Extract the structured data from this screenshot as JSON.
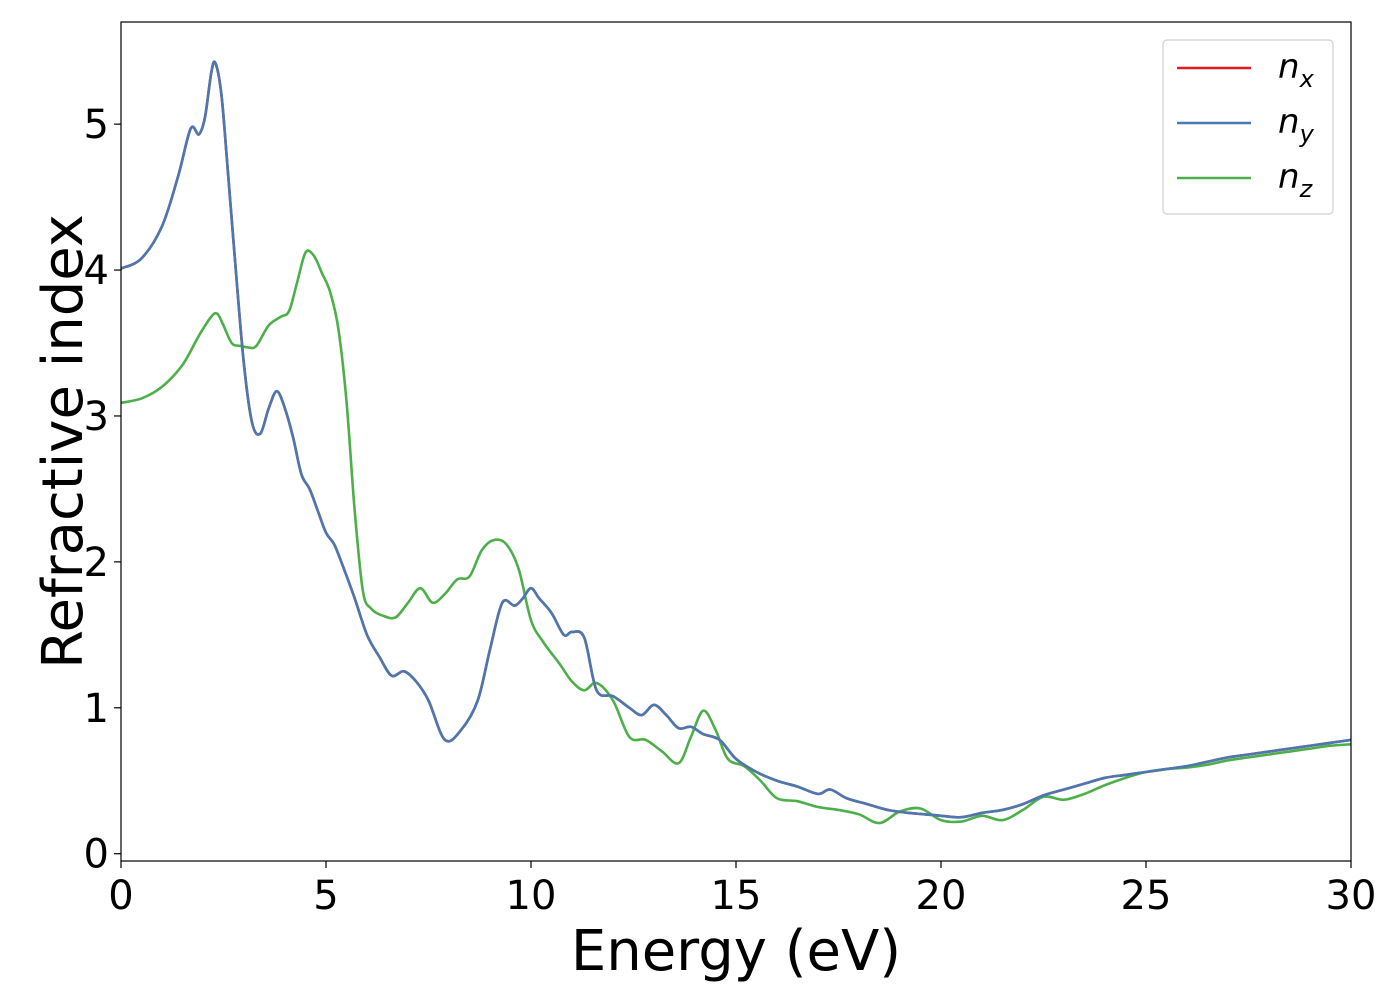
{
  "chart_data": {
    "type": "line",
    "xlabel": "Energy (eV)",
    "ylabel": "Refractive index",
    "xlim": [
      0,
      30
    ],
    "ylim": [
      -0.05,
      5.7
    ],
    "xticks": [
      0,
      5,
      10,
      15,
      20,
      25,
      30
    ],
    "yticks": [
      0,
      1,
      2,
      3,
      4,
      5
    ],
    "grid": false,
    "legend_position": "top-right",
    "series": [
      {
        "name": "n",
        "subscript": "x",
        "color": "#e41a1c",
        "x": [
          0,
          0.5,
          1.0,
          1.4,
          1.7,
          1.9,
          2.05,
          2.2,
          2.3,
          2.45,
          2.6,
          2.8,
          3.0,
          3.2,
          3.4,
          3.6,
          3.8,
          4.0,
          4.2,
          4.4,
          4.6,
          4.8,
          5.0,
          5.2,
          5.4,
          5.7,
          6.0,
          6.3,
          6.6,
          6.9,
          7.2,
          7.5,
          7.9,
          8.3,
          8.7,
          9.0,
          9.3,
          9.6,
          9.8,
          10.0,
          10.2,
          10.5,
          10.8,
          11.0,
          11.3,
          11.6,
          12.0,
          12.4,
          12.7,
          13.0,
          13.3,
          13.6,
          13.9,
          14.2,
          14.6,
          15.0,
          15.5,
          16.0,
          16.5,
          17.0,
          17.3,
          17.7,
          18.2,
          18.7,
          19.2,
          19.6,
          20.0,
          20.5,
          21.0,
          21.5,
          22.0,
          22.5,
          23.0,
          23.5,
          24.0,
          24.5,
          25.0,
          25.5,
          26.0,
          26.5,
          27.0,
          27.5,
          28.0,
          28.5,
          29.0,
          29.5,
          30.0
        ],
        "y": [
          4.01,
          4.08,
          4.3,
          4.65,
          4.97,
          4.93,
          5.05,
          5.35,
          5.42,
          5.2,
          4.7,
          4.0,
          3.35,
          2.95,
          2.88,
          3.05,
          3.17,
          3.05,
          2.85,
          2.6,
          2.5,
          2.35,
          2.2,
          2.12,
          1.98,
          1.75,
          1.5,
          1.35,
          1.22,
          1.25,
          1.18,
          1.05,
          0.78,
          0.85,
          1.05,
          1.4,
          1.72,
          1.7,
          1.75,
          1.82,
          1.75,
          1.65,
          1.5,
          1.52,
          1.48,
          1.12,
          1.08,
          1.0,
          0.95,
          1.02,
          0.95,
          0.86,
          0.87,
          0.82,
          0.78,
          0.65,
          0.56,
          0.5,
          0.46,
          0.41,
          0.44,
          0.38,
          0.34,
          0.3,
          0.28,
          0.27,
          0.26,
          0.25,
          0.28,
          0.3,
          0.34,
          0.4,
          0.44,
          0.48,
          0.52,
          0.54,
          0.56,
          0.58,
          0.6,
          0.63,
          0.66,
          0.68,
          0.7,
          0.72,
          0.74,
          0.76,
          0.78
        ]
      },
      {
        "name": "n",
        "subscript": "y",
        "color": "#4a78b0",
        "x": [
          0,
          0.5,
          1.0,
          1.4,
          1.7,
          1.9,
          2.05,
          2.2,
          2.3,
          2.45,
          2.6,
          2.8,
          3.0,
          3.2,
          3.4,
          3.6,
          3.8,
          4.0,
          4.2,
          4.4,
          4.6,
          4.8,
          5.0,
          5.2,
          5.4,
          5.7,
          6.0,
          6.3,
          6.6,
          6.9,
          7.2,
          7.5,
          7.9,
          8.3,
          8.7,
          9.0,
          9.3,
          9.6,
          9.8,
          10.0,
          10.2,
          10.5,
          10.8,
          11.0,
          11.3,
          11.6,
          12.0,
          12.4,
          12.7,
          13.0,
          13.3,
          13.6,
          13.9,
          14.2,
          14.6,
          15.0,
          15.5,
          16.0,
          16.5,
          17.0,
          17.3,
          17.7,
          18.2,
          18.7,
          19.2,
          19.6,
          20.0,
          20.5,
          21.0,
          21.5,
          22.0,
          22.5,
          23.0,
          23.5,
          24.0,
          24.5,
          25.0,
          25.5,
          26.0,
          26.5,
          27.0,
          27.5,
          28.0,
          28.5,
          29.0,
          29.5,
          30.0
        ],
        "y": [
          4.01,
          4.08,
          4.3,
          4.65,
          4.97,
          4.93,
          5.05,
          5.35,
          5.42,
          5.2,
          4.7,
          4.0,
          3.35,
          2.95,
          2.88,
          3.05,
          3.17,
          3.05,
          2.85,
          2.6,
          2.5,
          2.35,
          2.2,
          2.12,
          1.98,
          1.75,
          1.5,
          1.35,
          1.22,
          1.25,
          1.18,
          1.05,
          0.78,
          0.85,
          1.05,
          1.4,
          1.72,
          1.7,
          1.75,
          1.82,
          1.75,
          1.65,
          1.5,
          1.52,
          1.48,
          1.12,
          1.08,
          1.0,
          0.95,
          1.02,
          0.95,
          0.86,
          0.87,
          0.82,
          0.78,
          0.65,
          0.56,
          0.5,
          0.46,
          0.41,
          0.44,
          0.38,
          0.34,
          0.3,
          0.28,
          0.27,
          0.26,
          0.25,
          0.28,
          0.3,
          0.34,
          0.4,
          0.44,
          0.48,
          0.52,
          0.54,
          0.56,
          0.58,
          0.6,
          0.63,
          0.66,
          0.68,
          0.7,
          0.72,
          0.74,
          0.76,
          0.78
        ]
      },
      {
        "name": "n",
        "subscript": "z",
        "color": "#4daf4a",
        "x": [
          0,
          0.5,
          1.0,
          1.5,
          1.9,
          2.2,
          2.35,
          2.5,
          2.7,
          2.9,
          3.1,
          3.3,
          3.6,
          3.9,
          4.1,
          4.3,
          4.5,
          4.7,
          4.9,
          5.1,
          5.3,
          5.5,
          5.7,
          5.9,
          6.1,
          6.4,
          6.7,
          7.0,
          7.3,
          7.6,
          7.9,
          8.2,
          8.5,
          8.8,
          9.1,
          9.4,
          9.7,
          10.0,
          10.3,
          10.7,
          11.0,
          11.3,
          11.6,
          12.0,
          12.4,
          12.8,
          13.2,
          13.6,
          13.9,
          14.2,
          14.5,
          14.8,
          15.2,
          15.6,
          16.0,
          16.5,
          17.0,
          17.5,
          18.0,
          18.5,
          19.0,
          19.5,
          20.0,
          20.5,
          21.0,
          21.5,
          22.0,
          22.5,
          23.0,
          23.5,
          24.0,
          24.5,
          25.0,
          25.5,
          26.0,
          26.5,
          27.0,
          27.5,
          28.0,
          28.5,
          29.0,
          29.5,
          30.0
        ],
        "y": [
          3.09,
          3.12,
          3.2,
          3.35,
          3.55,
          3.68,
          3.7,
          3.62,
          3.5,
          3.48,
          3.47,
          3.48,
          3.62,
          3.68,
          3.72,
          3.92,
          4.12,
          4.1,
          3.98,
          3.85,
          3.6,
          3.1,
          2.35,
          1.8,
          1.68,
          1.63,
          1.62,
          1.72,
          1.82,
          1.72,
          1.78,
          1.88,
          1.9,
          2.08,
          2.15,
          2.12,
          1.95,
          1.6,
          1.45,
          1.3,
          1.18,
          1.12,
          1.17,
          1.05,
          0.8,
          0.78,
          0.7,
          0.62,
          0.8,
          0.98,
          0.85,
          0.65,
          0.6,
          0.5,
          0.38,
          0.36,
          0.32,
          0.3,
          0.27,
          0.21,
          0.29,
          0.31,
          0.23,
          0.22,
          0.26,
          0.23,
          0.3,
          0.39,
          0.37,
          0.41,
          0.47,
          0.52,
          0.56,
          0.58,
          0.59,
          0.61,
          0.64,
          0.66,
          0.68,
          0.7,
          0.72,
          0.74,
          0.75
        ]
      }
    ]
  }
}
